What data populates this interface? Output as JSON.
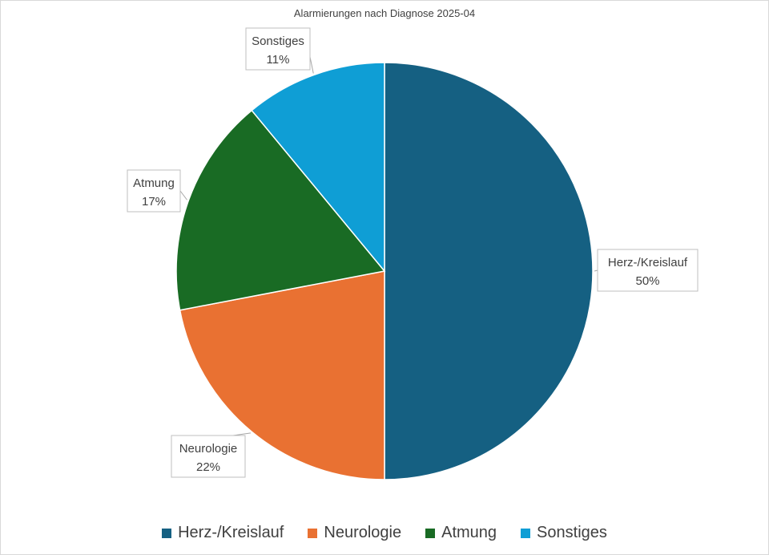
{
  "chart_data": {
    "type": "pie",
    "title": "Alarmierungen nach Diagnose 2025-04",
    "categories": [
      "Herz-/Kreislauf",
      "Neurologie",
      "Atmung",
      "Sonstiges"
    ],
    "values": [
      50,
      22,
      17,
      11
    ],
    "data_labels": [
      "50%",
      "22%",
      "17%",
      "11%"
    ],
    "colors": [
      "#156082",
      "#E97132",
      "#196B24",
      "#0F9ED5"
    ],
    "legend": "bottom"
  }
}
